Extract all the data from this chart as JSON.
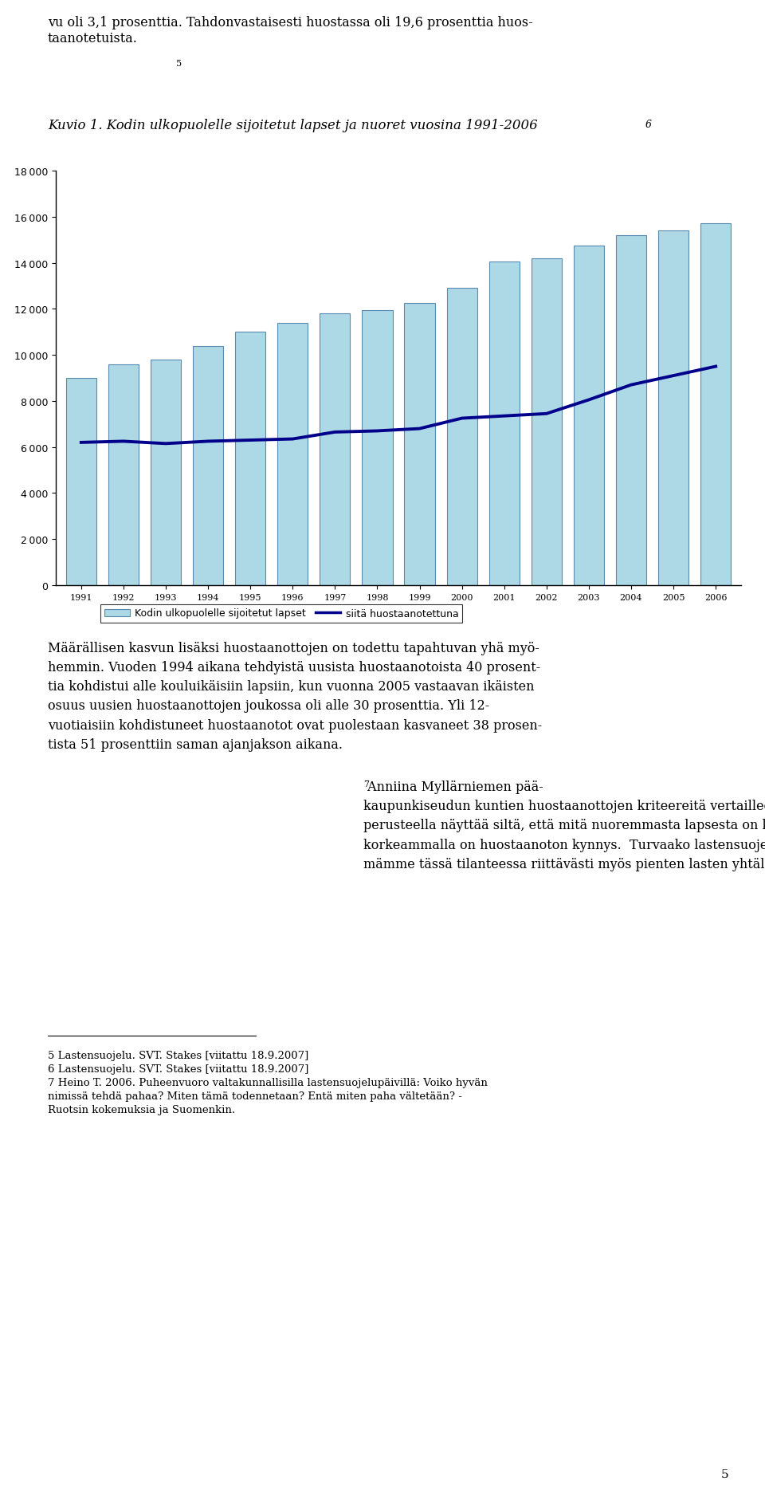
{
  "years": [
    1991,
    1992,
    1993,
    1994,
    1995,
    1996,
    1997,
    1998,
    1999,
    2000,
    2001,
    2002,
    2003,
    2004,
    2005,
    2006
  ],
  "bar_values": [
    9000,
    9600,
    9800,
    10400,
    11000,
    11400,
    11800,
    11950,
    12250,
    12900,
    14050,
    14200,
    14750,
    15200,
    15400,
    15700
  ],
  "line_values": [
    6200,
    6250,
    6150,
    6250,
    6300,
    6350,
    6650,
    6700,
    6800,
    7250,
    7350,
    7450,
    8050,
    8700,
    9100,
    9500
  ],
  "bar_color": "#add8e6",
  "bar_edge_color": "#5a8ab0",
  "line_color": "#00008B",
  "ylim": [
    0,
    18000
  ],
  "yticks": [
    0,
    2000,
    4000,
    6000,
    8000,
    10000,
    12000,
    14000,
    16000,
    18000
  ],
  "legend_bar_label": "Kodin ulkopuolelle sijoitetut lapset",
  "legend_line_label": "siitä huostaanotettuna"
}
